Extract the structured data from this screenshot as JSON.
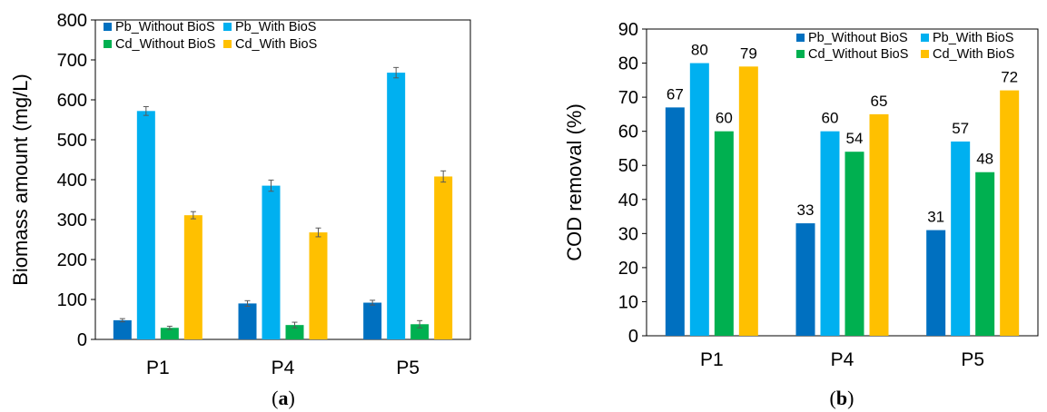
{
  "colors": {
    "Pb_Without BioS": "#0070C0",
    "Pb_With BioS": "#00B0F0",
    "Cd_Without BioS": "#00B050",
    "Cd_With BioS": "#FFC000"
  },
  "chart_data": [
    {
      "type": "bar",
      "panel": "a",
      "panel_open": "(",
      "panel_close": ")",
      "categories": [
        "P1",
        "P4",
        "P5"
      ],
      "ylabel": "Biomass amount (mg/L)",
      "xlabel": "",
      "ylim": [
        0,
        800
      ],
      "yticks": [
        0,
        100,
        200,
        300,
        400,
        500,
        600,
        700,
        800
      ],
      "legend_position": "top-left, inside plot (2 columns)",
      "error_bars": true,
      "data_labels": false,
      "series": [
        {
          "name": "Pb_Without BioS",
          "values": [
            48,
            90,
            92
          ],
          "errors": [
            4,
            7,
            6
          ]
        },
        {
          "name": "Pb_With BioS",
          "values": [
            572,
            385,
            668
          ],
          "errors": [
            11,
            14,
            13
          ]
        },
        {
          "name": "Cd_Without BioS",
          "values": [
            29,
            36,
            38
          ],
          "errors": [
            4,
            7,
            9
          ]
        },
        {
          "name": "Cd_With BioS",
          "values": [
            311,
            268,
            408
          ],
          "errors": [
            9,
            11,
            14
          ]
        }
      ]
    },
    {
      "type": "bar",
      "panel": "b",
      "panel_open": "(",
      "panel_close": ")",
      "categories": [
        "P1",
        "P4",
        "P5"
      ],
      "ylabel": "COD removal (%)",
      "xlabel": "",
      "ylim": [
        0,
        90
      ],
      "yticks": [
        0,
        10,
        20,
        30,
        40,
        50,
        60,
        70,
        80,
        90
      ],
      "legend_position": "top-right, inside plot (2 columns)",
      "error_bars": false,
      "data_labels": true,
      "series": [
        {
          "name": "Pb_Without BioS",
          "values": [
            67,
            33,
            31
          ]
        },
        {
          "name": "Pb_With BioS",
          "values": [
            80,
            60,
            57
          ]
        },
        {
          "name": "Cd_Without BioS",
          "values": [
            60,
            54,
            48
          ]
        },
        {
          "name": "Cd_With BioS",
          "values": [
            79,
            65,
            72
          ]
        }
      ]
    }
  ]
}
